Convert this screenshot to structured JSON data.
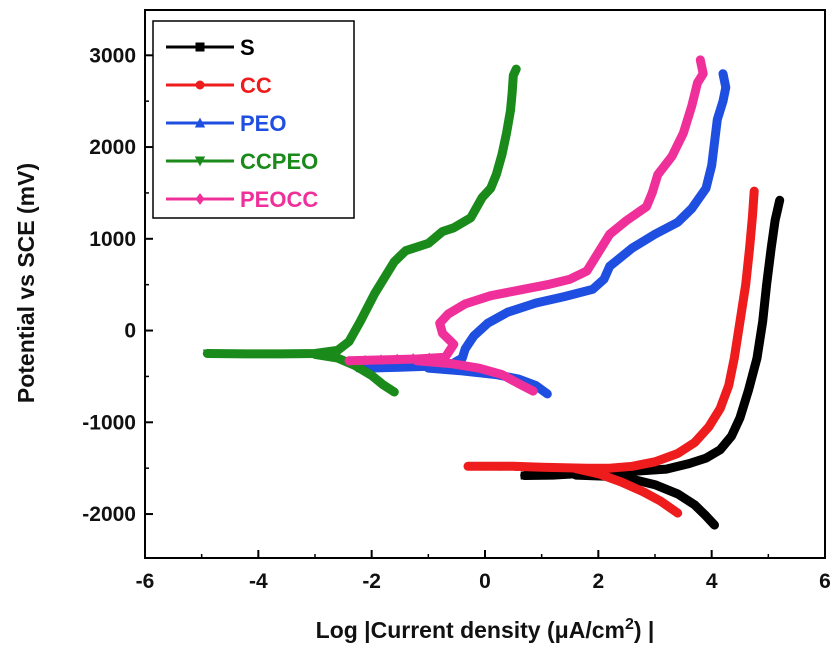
{
  "chart_data": {
    "type": "line",
    "title": "",
    "xlabel": "Log |Current density (μA/cm",
    "xlabel_sup": "2",
    "xlabel_tail": ") |",
    "ylabel": "Potential  vs SCE (mV)",
    "xlim": [
      -6,
      6
    ],
    "ylim": [
      -2500,
      3250
    ],
    "xticks": [
      "-6",
      "-4",
      "-2",
      "0",
      "2",
      "4",
      "6"
    ],
    "yticks": [
      "-2000",
      "-1000",
      "0",
      "1000",
      "2000",
      "3000"
    ],
    "legend_position": "top-left",
    "series": [
      {
        "name": "S",
        "color": "#000000",
        "marker": "square",
        "points": [
          [
            0.7,
            -1580
          ],
          [
            1.2,
            -1575
          ],
          [
            1.6,
            -1560
          ],
          [
            2.0,
            -1545
          ],
          [
            2.6,
            -1535
          ],
          [
            3.2,
            -1510
          ],
          [
            3.6,
            -1450
          ],
          [
            3.9,
            -1390
          ],
          [
            4.15,
            -1300
          ],
          [
            4.35,
            -1150
          ],
          [
            4.5,
            -950
          ],
          [
            4.65,
            -650
          ],
          [
            4.8,
            -300
          ],
          [
            4.9,
            100
          ],
          [
            4.97,
            500
          ],
          [
            5.05,
            900
          ],
          [
            5.12,
            1200
          ],
          [
            5.2,
            1420
          ],
          [
            1.6,
            -1575
          ],
          [
            2.2,
            -1590
          ],
          [
            2.6,
            -1620
          ],
          [
            3.0,
            -1680
          ],
          [
            3.4,
            -1780
          ],
          [
            3.7,
            -1900
          ],
          [
            3.9,
            -2020
          ],
          [
            4.05,
            -2120
          ]
        ]
      },
      {
        "name": "CC",
        "color": "#ee1c1c",
        "marker": "circle",
        "points": [
          [
            -0.3,
            -1480
          ],
          [
            0.5,
            -1480
          ],
          [
            1.0,
            -1490
          ],
          [
            1.4,
            -1495
          ],
          [
            1.8,
            -1500
          ],
          [
            2.2,
            -1500
          ],
          [
            2.6,
            -1480
          ],
          [
            3.0,
            -1430
          ],
          [
            3.4,
            -1340
          ],
          [
            3.7,
            -1220
          ],
          [
            3.95,
            -1050
          ],
          [
            4.15,
            -850
          ],
          [
            4.3,
            -600
          ],
          [
            4.4,
            -300
          ],
          [
            4.5,
            100
          ],
          [
            4.6,
            500
          ],
          [
            4.67,
            900
          ],
          [
            4.72,
            1250
          ],
          [
            4.75,
            1520
          ],
          [
            1.6,
            -1505
          ],
          [
            2.0,
            -1560
          ],
          [
            2.4,
            -1650
          ],
          [
            2.8,
            -1760
          ],
          [
            3.1,
            -1860
          ],
          [
            3.4,
            -1990
          ]
        ]
      },
      {
        "name": "PEO",
        "color": "#1f4fe0",
        "marker": "triangle-up",
        "points": [
          [
            -2.2,
            -410
          ],
          [
            -1.5,
            -400
          ],
          [
            -1.0,
            -390
          ],
          [
            -0.6,
            -370
          ],
          [
            -0.4,
            -300
          ],
          [
            -0.35,
            -200
          ],
          [
            -0.2,
            -60
          ],
          [
            0.05,
            80
          ],
          [
            0.4,
            200
          ],
          [
            0.9,
            300
          ],
          [
            1.4,
            370
          ],
          [
            1.9,
            450
          ],
          [
            2.1,
            560
          ],
          [
            2.2,
            700
          ],
          [
            2.6,
            900
          ],
          [
            3.0,
            1050
          ],
          [
            3.4,
            1180
          ],
          [
            3.65,
            1330
          ],
          [
            3.9,
            1550
          ],
          [
            4.0,
            1800
          ],
          [
            4.05,
            2050
          ],
          [
            4.1,
            2300
          ],
          [
            4.2,
            2500
          ],
          [
            4.25,
            2650
          ],
          [
            4.2,
            2800
          ],
          [
            -1.0,
            -410
          ],
          [
            -0.4,
            -440
          ],
          [
            0.2,
            -480
          ],
          [
            0.6,
            -530
          ],
          [
            0.9,
            -600
          ],
          [
            1.1,
            -690
          ]
        ]
      },
      {
        "name": "CCPEO",
        "color": "#1a8a1a",
        "marker": "triangle-down",
        "points": [
          [
            -4.9,
            -250
          ],
          [
            -4.2,
            -255
          ],
          [
            -3.6,
            -255
          ],
          [
            -3.0,
            -250
          ],
          [
            -2.6,
            -215
          ],
          [
            -2.4,
            -120
          ],
          [
            -2.2,
            100
          ],
          [
            -1.95,
            400
          ],
          [
            -1.6,
            750
          ],
          [
            -1.4,
            870
          ],
          [
            -1.0,
            950
          ],
          [
            -0.75,
            1080
          ],
          [
            -0.55,
            1120
          ],
          [
            -0.25,
            1230
          ],
          [
            -0.05,
            1450
          ],
          [
            0.1,
            1550
          ],
          [
            0.2,
            1700
          ],
          [
            0.3,
            1920
          ],
          [
            0.38,
            2150
          ],
          [
            0.45,
            2400
          ],
          [
            0.48,
            2600
          ],
          [
            0.5,
            2780
          ],
          [
            0.55,
            2850
          ],
          [
            -3.0,
            -260
          ],
          [
            -2.6,
            -300
          ],
          [
            -2.3,
            -380
          ],
          [
            -2.0,
            -490
          ],
          [
            -1.8,
            -590
          ],
          [
            -1.6,
            -670
          ]
        ]
      },
      {
        "name": "PEOCC",
        "color": "#f0309a",
        "marker": "diamond",
        "points": [
          [
            -2.4,
            -330
          ],
          [
            -1.8,
            -320
          ],
          [
            -1.2,
            -310
          ],
          [
            -0.7,
            -290
          ],
          [
            -0.55,
            -150
          ],
          [
            -0.75,
            -30
          ],
          [
            -0.8,
            80
          ],
          [
            -0.65,
            180
          ],
          [
            -0.35,
            290
          ],
          [
            0.1,
            380
          ],
          [
            0.6,
            440
          ],
          [
            1.1,
            500
          ],
          [
            1.5,
            560
          ],
          [
            1.8,
            650
          ],
          [
            2.0,
            850
          ],
          [
            2.2,
            1050
          ],
          [
            2.5,
            1200
          ],
          [
            2.85,
            1350
          ],
          [
            2.95,
            1500
          ],
          [
            3.05,
            1700
          ],
          [
            3.3,
            1900
          ],
          [
            3.5,
            2150
          ],
          [
            3.65,
            2450
          ],
          [
            3.75,
            2700
          ],
          [
            3.85,
            2800
          ],
          [
            3.8,
            2950
          ],
          [
            -1.2,
            -330
          ],
          [
            -0.6,
            -360
          ],
          [
            -0.1,
            -410
          ],
          [
            0.3,
            -480
          ],
          [
            0.6,
            -580
          ],
          [
            0.85,
            -660
          ]
        ]
      }
    ]
  }
}
